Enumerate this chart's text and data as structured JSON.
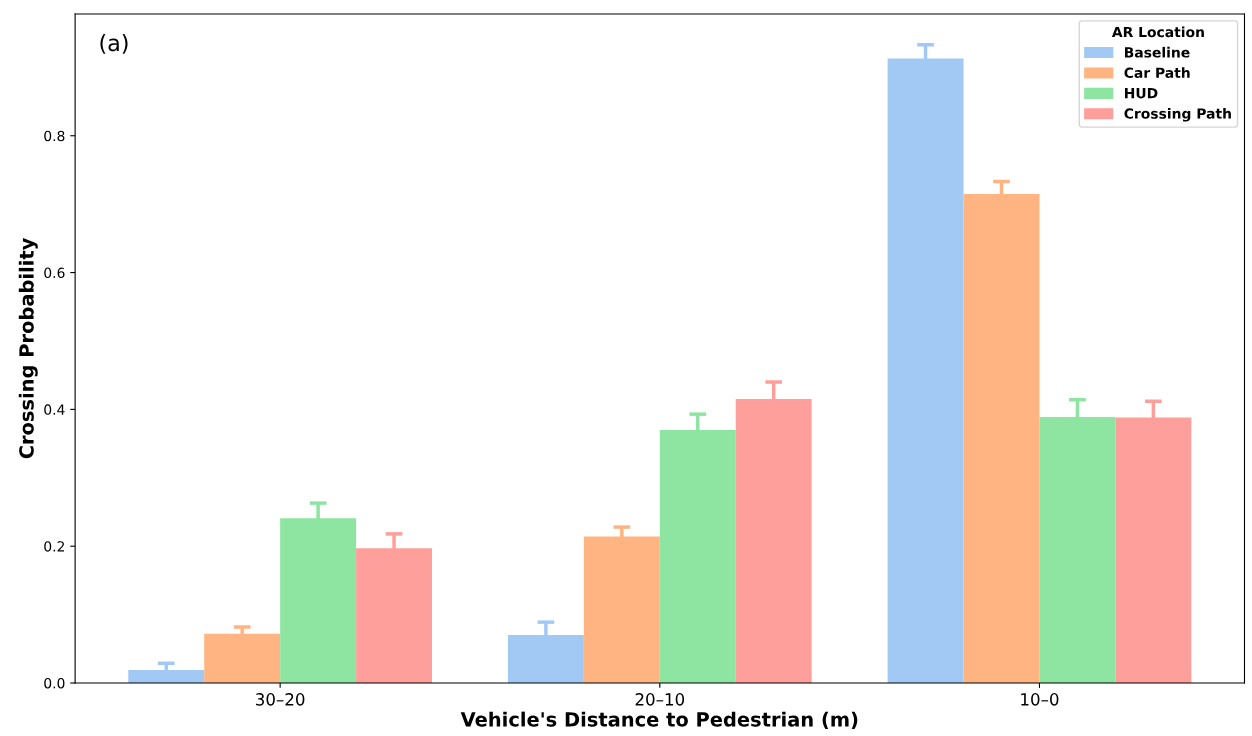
{
  "chart_data": {
    "type": "bar",
    "xlabel": "Vehicle's Distance to Pedestrian (m)",
    "ylabel": "Crossing Probability",
    "categories": [
      "30–20",
      "20–10",
      "10–0"
    ],
    "series": [
      {
        "name": "Baseline",
        "color": "#a1c9f4",
        "values": [
          0.019,
          0.07,
          0.913
        ],
        "errors": [
          0.01,
          0.019,
          0.02
        ]
      },
      {
        "name": "Car Path",
        "color": "#ffb482",
        "values": [
          0.072,
          0.214,
          0.715
        ],
        "errors": [
          0.01,
          0.014,
          0.018
        ]
      },
      {
        "name": "HUD",
        "color": "#8de5a1",
        "values": [
          0.241,
          0.37,
          0.389
        ],
        "errors": [
          0.022,
          0.023,
          0.025
        ]
      },
      {
        "name": "Crossing Path",
        "color": "#ff9f9b",
        "values": [
          0.197,
          0.415,
          0.388
        ],
        "errors": [
          0.021,
          0.025,
          0.024
        ]
      }
    ],
    "ylim": [
      0,
      0.978
    ],
    "yticks": [
      {
        "value": 0,
        "label": "0.0"
      },
      {
        "value": 0.2,
        "label": "0.2"
      },
      {
        "value": 0.4,
        "label": "0.4"
      },
      {
        "value": 0.6,
        "label": "0.6"
      },
      {
        "value": 0.8,
        "label": "0.8"
      }
    ],
    "legend": "top right",
    "legend_title": "AR Location",
    "grid": false,
    "annotations": [
      "(a)"
    ]
  }
}
